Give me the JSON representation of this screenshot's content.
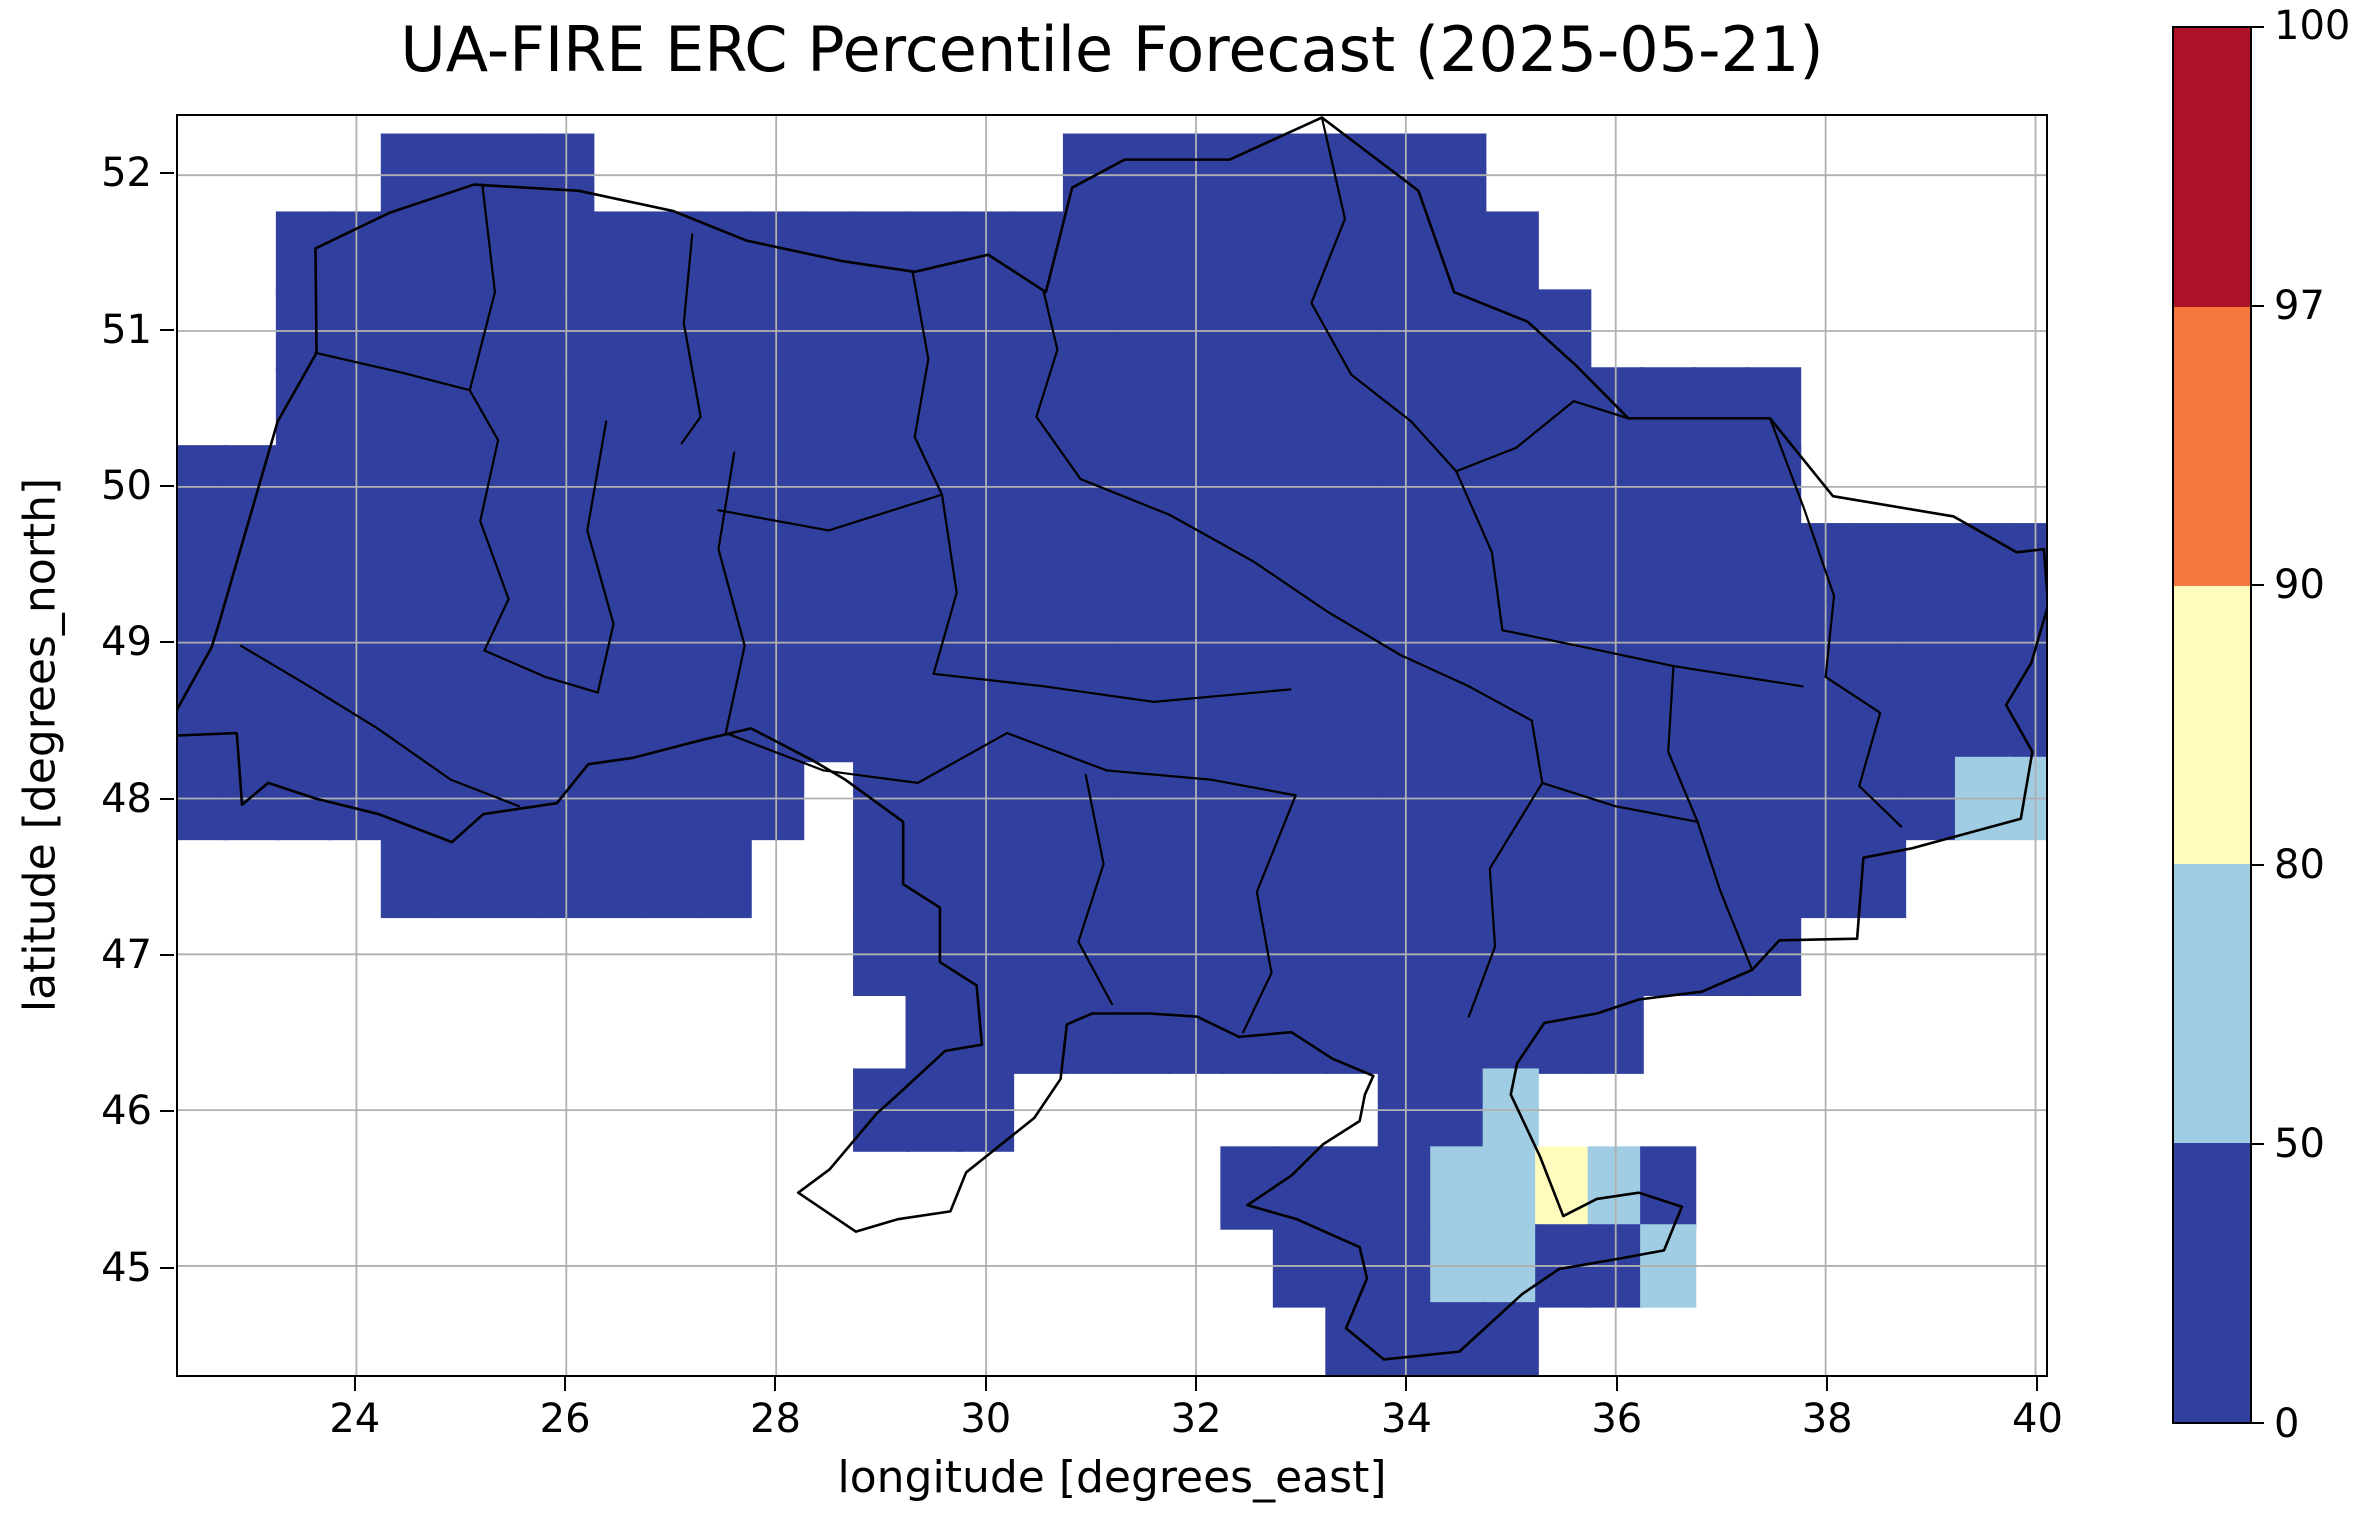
{
  "chart_data": {
    "type": "heatmap",
    "title": "UA-FIRE ERC Percentile Forecast (2025-05-21)",
    "xlabel": "longitude [degrees_east]",
    "ylabel": "latitude [degrees_north]",
    "x_range": [
      22.3,
      40.1
    ],
    "y_range": [
      44.3,
      52.38
    ],
    "x_ticks": [
      24,
      26,
      28,
      30,
      32,
      34,
      36,
      38,
      40
    ],
    "y_ticks": [
      45,
      46,
      47,
      48,
      49,
      50,
      51,
      52
    ],
    "grid": true,
    "grid_color": "#b0b0b0",
    "boundary_color": "#000000",
    "colorbar": {
      "position": "right",
      "levels": [
        0,
        50,
        80,
        90,
        97,
        100
      ],
      "colors": [
        "#31409f",
        "#a1cde4",
        "#fffcbe",
        "#f5793f",
        "#ad1328"
      ],
      "meaning": "ERC percentile class fill colors from low (0-50) to extreme (97-100)"
    },
    "raster": {
      "lon_min": 22.25,
      "lat_max": 52.25,
      "dlon": 0.5,
      "dlat": 0.5,
      "legend": {
        "b": "0-50",
        "l": "50-80",
        "y": "80-90"
      },
      "rows": [
        "....bbbb.........bbbbbbbb...........",
        "..bbbbbbbbbbbbbbbbbbbbbbbb..........",
        "..bbbbbbbbbbbbbbbbbbbbbbbbb.........",
        "..bbbbbbbbbbbbbbbbbbbbbbbbbbbbb.....",
        "bbbbbbbbbbbbbbbbbbbbbbbbbbbbbbb.....",
        "bbbbbbbbbbbbbbbbbbbbbbbbbbbbbbbbbbbb",
        "bbbbbbbbbbbbbbbbbbbbbbbbbbbbbbbbbbbb",
        "bbbbbbbbbbbbbbbbbbbbbbbbbbbbbbbbbbbb",
        "bbbbbbbbbbbb.bbbbbbbbbbbbbbbbbbbbbll",
        "....bbbbbbb..bbbbbbbbbbbbbbbbbbbb...",
        ".............bbbbbbbbbbbbbbbbbb.....",
        "..............bbbbbbbbbbbbbb........",
        ".............bbb.......bbl..........",
        "....................bbbbllylb.......",
        ".....................bbbllbbl.......",
        "......................bbbb.........."
      ]
    },
    "boundaries": {
      "country": [
        [
          22.15,
          48.4
        ],
        [
          22.62,
          48.97
        ],
        [
          22.68,
          49.1
        ],
        [
          23.25,
          50.42
        ],
        [
          23.62,
          50.86
        ],
        [
          23.61,
          51.53
        ],
        [
          24.32,
          51.76
        ],
        [
          25.12,
          51.94
        ],
        [
          26.12,
          51.9
        ],
        [
          27.02,
          51.77
        ],
        [
          27.72,
          51.58
        ],
        [
          28.62,
          51.45
        ],
        [
          29.32,
          51.38
        ],
        [
          30.02,
          51.49
        ],
        [
          30.57,
          51.25
        ],
        [
          30.82,
          51.92
        ],
        [
          31.32,
          52.1
        ],
        [
          32.32,
          52.1
        ],
        [
          33.2,
          52.37
        ],
        [
          34.12,
          51.9
        ],
        [
          34.46,
          51.25
        ],
        [
          35.16,
          51.06
        ],
        [
          35.62,
          50.78
        ],
        [
          36.12,
          50.44
        ],
        [
          37.47,
          50.44
        ],
        [
          38.07,
          49.94
        ],
        [
          39.22,
          49.81
        ],
        [
          39.82,
          49.58
        ],
        [
          40.08,
          49.6
        ],
        [
          40.12,
          49.24
        ],
        [
          39.96,
          48.87
        ],
        [
          39.72,
          48.6
        ],
        [
          39.97,
          48.3
        ],
        [
          39.86,
          47.87
        ],
        [
          38.82,
          47.68
        ],
        [
          38.36,
          47.62
        ],
        [
          38.3,
          47.1
        ],
        [
          37.56,
          47.09
        ],
        [
          37.3,
          46.9
        ],
        [
          36.82,
          46.76
        ],
        [
          36.22,
          46.71
        ],
        [
          35.82,
          46.62
        ],
        [
          35.32,
          46.56
        ],
        [
          35.06,
          46.3
        ],
        [
          35.0,
          46.1
        ],
        [
          35.28,
          45.7
        ],
        [
          35.5,
          45.32
        ],
        [
          35.82,
          45.43
        ],
        [
          36.22,
          45.47
        ],
        [
          36.63,
          45.38
        ],
        [
          36.46,
          45.1
        ],
        [
          36.06,
          45.05
        ],
        [
          35.46,
          44.98
        ],
        [
          35.11,
          44.82
        ],
        [
          34.51,
          44.45
        ],
        [
          33.79,
          44.4
        ],
        [
          33.43,
          44.6
        ],
        [
          33.63,
          44.92
        ],
        [
          33.56,
          45.12
        ],
        [
          32.96,
          45.3
        ],
        [
          32.49,
          45.39
        ],
        [
          32.91,
          45.58
        ],
        [
          33.21,
          45.78
        ],
        [
          33.56,
          45.93
        ],
        [
          33.61,
          46.1
        ],
        [
          33.69,
          46.22
        ],
        [
          33.3,
          46.33
        ],
        [
          32.91,
          46.5
        ],
        [
          32.41,
          46.47
        ],
        [
          32.01,
          46.6
        ],
        [
          31.56,
          46.62
        ],
        [
          31.01,
          46.62
        ],
        [
          30.77,
          46.55
        ],
        [
          30.71,
          46.2
        ],
        [
          30.46,
          45.95
        ],
        [
          29.81,
          45.6
        ],
        [
          29.66,
          45.35
        ],
        [
          29.16,
          45.3
        ],
        [
          28.76,
          45.22
        ],
        [
          28.21,
          45.47
        ],
        [
          28.51,
          45.62
        ],
        [
          28.96,
          45.98
        ],
        [
          29.16,
          46.1
        ],
        [
          29.61,
          46.38
        ],
        [
          29.96,
          46.42
        ],
        [
          29.91,
          46.8
        ],
        [
          29.56,
          46.95
        ],
        [
          29.56,
          47.3
        ],
        [
          29.21,
          47.45
        ],
        [
          29.21,
          47.85
        ],
        [
          28.66,
          48.12
        ],
        [
          28.36,
          48.24
        ],
        [
          27.76,
          48.45
        ],
        [
          27.26,
          48.37
        ],
        [
          26.63,
          48.26
        ],
        [
          26.21,
          48.22
        ],
        [
          25.91,
          47.97
        ],
        [
          25.21,
          47.9
        ],
        [
          24.91,
          47.72
        ],
        [
          24.21,
          47.9
        ],
        [
          23.61,
          48.0
        ],
        [
          23.16,
          48.1
        ],
        [
          22.91,
          47.96
        ],
        [
          22.86,
          48.42
        ]
      ],
      "oblasts": [
        [
          [
            25.2,
            51.94
          ],
          [
            25.32,
            51.25
          ],
          [
            25.08,
            50.62
          ],
          [
            25.35,
            50.3
          ]
        ],
        [
          [
            23.61,
            50.86
          ],
          [
            24.45,
            50.73
          ],
          [
            25.08,
            50.62
          ]
        ],
        [
          [
            27.2,
            51.62
          ],
          [
            27.12,
            51.05
          ],
          [
            27.28,
            50.45
          ],
          [
            27.1,
            50.28
          ]
        ],
        [
          [
            29.3,
            51.38
          ],
          [
            29.45,
            50.82
          ],
          [
            29.32,
            50.32
          ],
          [
            29.58,
            49.95
          ]
        ],
        [
          [
            30.55,
            51.25
          ],
          [
            30.68,
            50.88
          ],
          [
            30.48,
            50.45
          ],
          [
            30.9,
            50.05
          ]
        ],
        [
          [
            33.2,
            52.37
          ],
          [
            33.42,
            51.72
          ],
          [
            33.1,
            51.18
          ],
          [
            33.48,
            50.72
          ]
        ],
        [
          [
            25.35,
            50.3
          ],
          [
            25.18,
            49.78
          ],
          [
            25.45,
            49.28
          ],
          [
            25.22,
            48.95
          ]
        ],
        [
          [
            26.38,
            50.42
          ],
          [
            26.2,
            49.72
          ],
          [
            26.45,
            49.12
          ],
          [
            26.3,
            48.68
          ]
        ],
        [
          [
            27.6,
            50.22
          ],
          [
            27.45,
            49.6
          ],
          [
            27.7,
            48.98
          ],
          [
            27.52,
            48.42
          ]
        ],
        [
          [
            29.58,
            49.95
          ],
          [
            29.72,
            49.32
          ],
          [
            29.5,
            48.8
          ]
        ],
        [
          [
            30.9,
            50.05
          ],
          [
            31.75,
            49.82
          ],
          [
            32.55,
            49.52
          ],
          [
            33.25,
            49.2
          ],
          [
            33.95,
            48.92
          ],
          [
            34.6,
            48.72
          ],
          [
            35.2,
            48.5
          ]
        ],
        [
          [
            33.48,
            50.72
          ],
          [
            34.05,
            50.42
          ],
          [
            34.48,
            50.1
          ]
        ],
        [
          [
            34.48,
            50.1
          ],
          [
            34.82,
            49.58
          ],
          [
            34.92,
            49.08
          ]
        ],
        [
          [
            34.92,
            49.08
          ],
          [
            35.85,
            48.95
          ],
          [
            36.55,
            48.85
          ],
          [
            37.78,
            48.72
          ]
        ],
        [
          [
            37.47,
            50.44
          ],
          [
            37.8,
            49.85
          ],
          [
            38.08,
            49.3
          ],
          [
            38.0,
            48.78
          ]
        ],
        [
          [
            38.0,
            48.78
          ],
          [
            38.52,
            48.55
          ],
          [
            38.32,
            48.08
          ],
          [
            38.72,
            47.82
          ]
        ],
        [
          [
            36.55,
            48.85
          ],
          [
            36.5,
            48.3
          ],
          [
            36.78,
            47.85
          ]
        ],
        [
          [
            35.2,
            48.5
          ],
          [
            35.3,
            48.1
          ],
          [
            36.0,
            47.95
          ],
          [
            36.78,
            47.85
          ]
        ],
        [
          [
            35.3,
            48.1
          ],
          [
            34.8,
            47.55
          ],
          [
            34.85,
            47.05
          ],
          [
            34.6,
            46.6
          ]
        ],
        [
          [
            29.5,
            48.8
          ],
          [
            30.55,
            48.72
          ],
          [
            31.6,
            48.62
          ],
          [
            32.9,
            48.7
          ]
        ],
        [
          [
            30.2,
            48.42
          ],
          [
            31.15,
            48.18
          ],
          [
            32.15,
            48.12
          ],
          [
            32.95,
            48.02
          ]
        ],
        [
          [
            32.95,
            48.02
          ],
          [
            32.58,
            47.4
          ],
          [
            32.72,
            46.88
          ],
          [
            32.45,
            46.5
          ]
        ],
        [
          [
            30.95,
            48.15
          ],
          [
            31.12,
            47.58
          ],
          [
            30.88,
            47.08
          ],
          [
            31.2,
            46.68
          ]
        ],
        [
          [
            22.9,
            48.98
          ],
          [
            23.55,
            48.72
          ],
          [
            24.2,
            48.45
          ],
          [
            24.9,
            48.12
          ],
          [
            25.55,
            47.95
          ]
        ],
        [
          [
            25.22,
            48.95
          ],
          [
            25.8,
            48.78
          ],
          [
            26.3,
            48.68
          ]
        ],
        [
          [
            27.52,
            48.42
          ],
          [
            28.45,
            48.18
          ],
          [
            29.35,
            48.1
          ],
          [
            30.2,
            48.42
          ]
        ],
        [
          [
            27.45,
            49.85
          ],
          [
            28.5,
            49.72
          ],
          [
            29.58,
            49.95
          ]
        ],
        [
          [
            34.48,
            50.1
          ],
          [
            35.05,
            50.25
          ],
          [
            35.6,
            50.55
          ],
          [
            36.12,
            50.44
          ]
        ],
        [
          [
            36.78,
            47.85
          ],
          [
            37.0,
            47.4
          ],
          [
            37.3,
            46.9
          ]
        ]
      ]
    }
  }
}
